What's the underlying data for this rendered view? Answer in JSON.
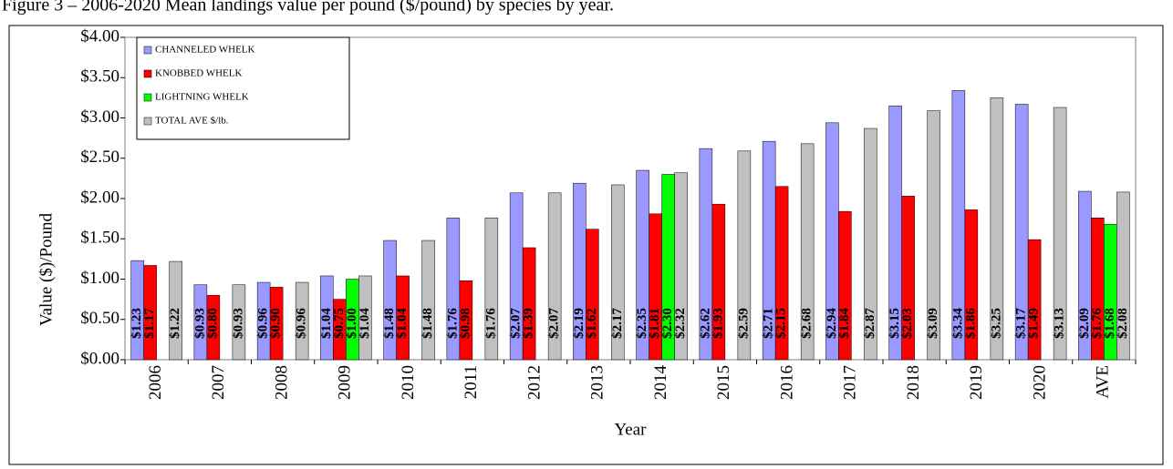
{
  "chart_data": {
    "type": "bar",
    "title": "Figure 3 – 2006-2020 Mean landings value per pound ($/pound) by species by year.",
    "x_label": "Year",
    "y_label": "Value ($)/Pound",
    "categories": [
      "2006",
      "2007",
      "2008",
      "2009",
      "2010",
      "2011",
      "2012",
      "2013",
      "2014",
      "2015",
      "2016",
      "2017",
      "2018",
      "2019",
      "2020",
      "AVE"
    ],
    "series": [
      {
        "name": "CHANNELED WHELK",
        "color": "#9999ff",
        "values": [
          1.23,
          0.93,
          0.96,
          1.04,
          1.48,
          1.76,
          2.07,
          2.19,
          2.35,
          2.62,
          2.71,
          2.94,
          3.15,
          3.34,
          3.17,
          2.09
        ],
        "value_labels": [
          "$1.23",
          "$0.93",
          "$0.96",
          "$1.04",
          "$1.48",
          "$1.76",
          "$2.07",
          "$2.19",
          "$2.35",
          "$2.62",
          "$2.71",
          "$2.94",
          "$3.15",
          "$3.34",
          "$3.17",
          "$2.09"
        ]
      },
      {
        "name": "KNOBBED WHELK",
        "color": "#ff0000",
        "values": [
          1.17,
          0.8,
          0.9,
          0.75,
          1.04,
          0.98,
          1.39,
          1.62,
          1.81,
          1.93,
          2.15,
          1.84,
          2.03,
          1.86,
          1.49,
          1.76
        ],
        "value_labels": [
          "$1.17",
          "$0.80",
          "$0.90",
          "$0.75",
          "$1.04",
          "$0.98",
          "$1.39",
          "$1.62",
          "$1.81",
          "$1.93",
          "$2.15",
          "$1.84",
          "$2.03",
          "$1.86",
          "$1.49",
          "$1.76"
        ]
      },
      {
        "name": "LIGHTNING WHELK",
        "color": "#00ff00",
        "values": [
          null,
          null,
          null,
          1.0,
          null,
          null,
          null,
          null,
          2.3,
          null,
          null,
          null,
          null,
          null,
          null,
          1.68
        ],
        "value_labels": [
          null,
          null,
          null,
          "$1.00",
          null,
          null,
          null,
          null,
          "$2.30",
          null,
          null,
          null,
          null,
          null,
          null,
          "$1.68"
        ]
      },
      {
        "name": "TOTAL AVE $/lb.",
        "color": "#c0c0c0",
        "values": [
          1.22,
          0.93,
          0.96,
          1.04,
          1.48,
          1.76,
          2.07,
          2.17,
          2.32,
          2.59,
          2.68,
          2.87,
          3.09,
          3.25,
          3.13,
          2.08
        ],
        "value_labels": [
          "$1.22",
          "$0.93",
          "$0.96",
          "$1.04",
          "$1.48",
          "$1.76",
          "$2.07",
          "$2.17",
          "$2.32",
          "$2.59",
          "$2.68",
          "$2.87",
          "$3.09",
          "$3.25",
          "$3.13",
          "$2.08"
        ]
      }
    ],
    "ylim": [
      0,
      4
    ],
    "yticks": [
      {
        "value": 0,
        "label": "$0.00"
      },
      {
        "value": 0.5,
        "label": "$0.50"
      },
      {
        "value": 1,
        "label": "$1.00"
      },
      {
        "value": 1.5,
        "label": "$1.50"
      },
      {
        "value": 2,
        "label": "$2.00"
      },
      {
        "value": 2.5,
        "label": "$2.50"
      },
      {
        "value": 3,
        "label": "$3.00"
      },
      {
        "value": 3.5,
        "label": "$3.50"
      },
      {
        "value": 4,
        "label": "$4.00"
      }
    ],
    "grid": false,
    "legend": "upper left"
  }
}
